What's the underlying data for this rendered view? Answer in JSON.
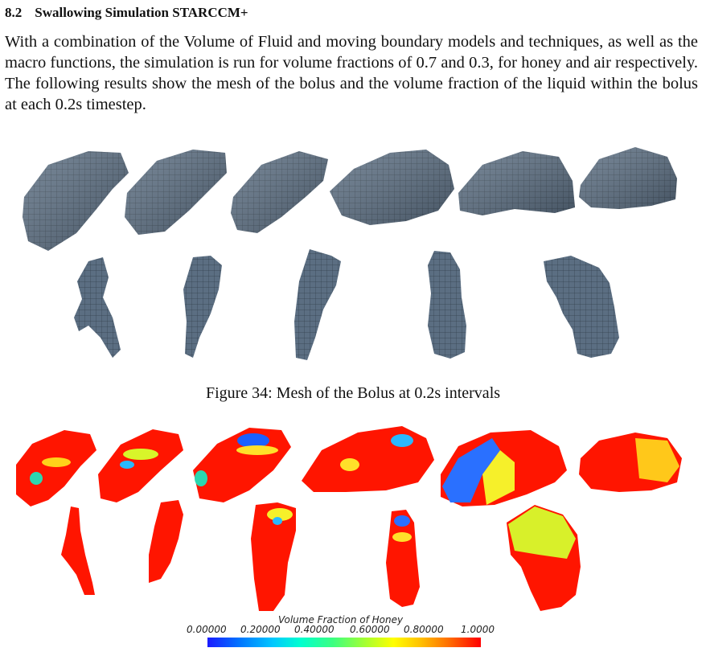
{
  "section": {
    "number": "8.2",
    "title": "Swallowing Simulation STARCCM+"
  },
  "paragraph": "With a combination of the Volume of Fluid and moving boundary models and techniques, as well as the macro functions, the simulation is run for volume fractions of 0.7 and 0.3, for honey and air respectively. The following results show the mesh of the bolus and the volume fraction of the liquid within the bolus at each 0.2s timestep.",
  "figure34": {
    "caption": "Figure 34: Mesh of the Bolus at 0.2s intervals"
  },
  "legend": {
    "title": "Volume Fraction of Honey",
    "ticks": [
      "0.00000",
      "0.20000",
      "0.40000",
      "0.60000",
      "0.80000",
      "1.0000"
    ]
  },
  "colors": {
    "mesh": "#5b6e82",
    "mesh_line": "#2a3440",
    "fluid_low": "#1a1aff",
    "fluid_high": "#ff0000"
  }
}
